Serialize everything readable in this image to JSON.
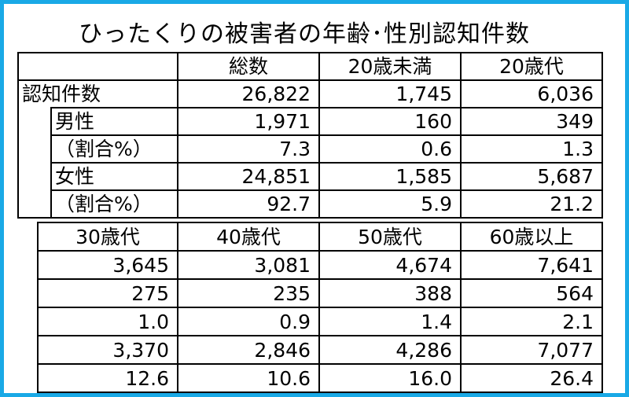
{
  "title": "ひったくりの被害者の年齢･性別認知件数",
  "table_top": {
    "headers": [
      "総数",
      "20歳未満",
      "20歳代"
    ],
    "rows": [
      {
        "label": "認知件数",
        "values": [
          "26,822",
          "1,745",
          "6,036"
        ]
      },
      {
        "label": "男性",
        "values": [
          "1,971",
          "160",
          "349"
        ]
      },
      {
        "label": "（割合%）",
        "values": [
          "7.3",
          "0.6",
          "1.3"
        ]
      },
      {
        "label": "女性",
        "values": [
          "24,851",
          "1,585",
          "5,687"
        ]
      },
      {
        "label": "（割合%）",
        "values": [
          "92.7",
          "5.9",
          "21.2"
        ]
      }
    ]
  },
  "table_bottom": {
    "headers": [
      "30歳代",
      "40歳代",
      "50歳代",
      "60歳以上"
    ],
    "rows": [
      [
        "3,645",
        "3,081",
        "4,674",
        "7,641"
      ],
      [
        "275",
        "235",
        "388",
        "564"
      ],
      [
        "1.0",
        "0.9",
        "1.4",
        "2.1"
      ],
      [
        "3,370",
        "2,846",
        "4,286",
        "7,077"
      ],
      [
        "12.6",
        "10.6",
        "16.0",
        "26.4"
      ]
    ]
  }
}
